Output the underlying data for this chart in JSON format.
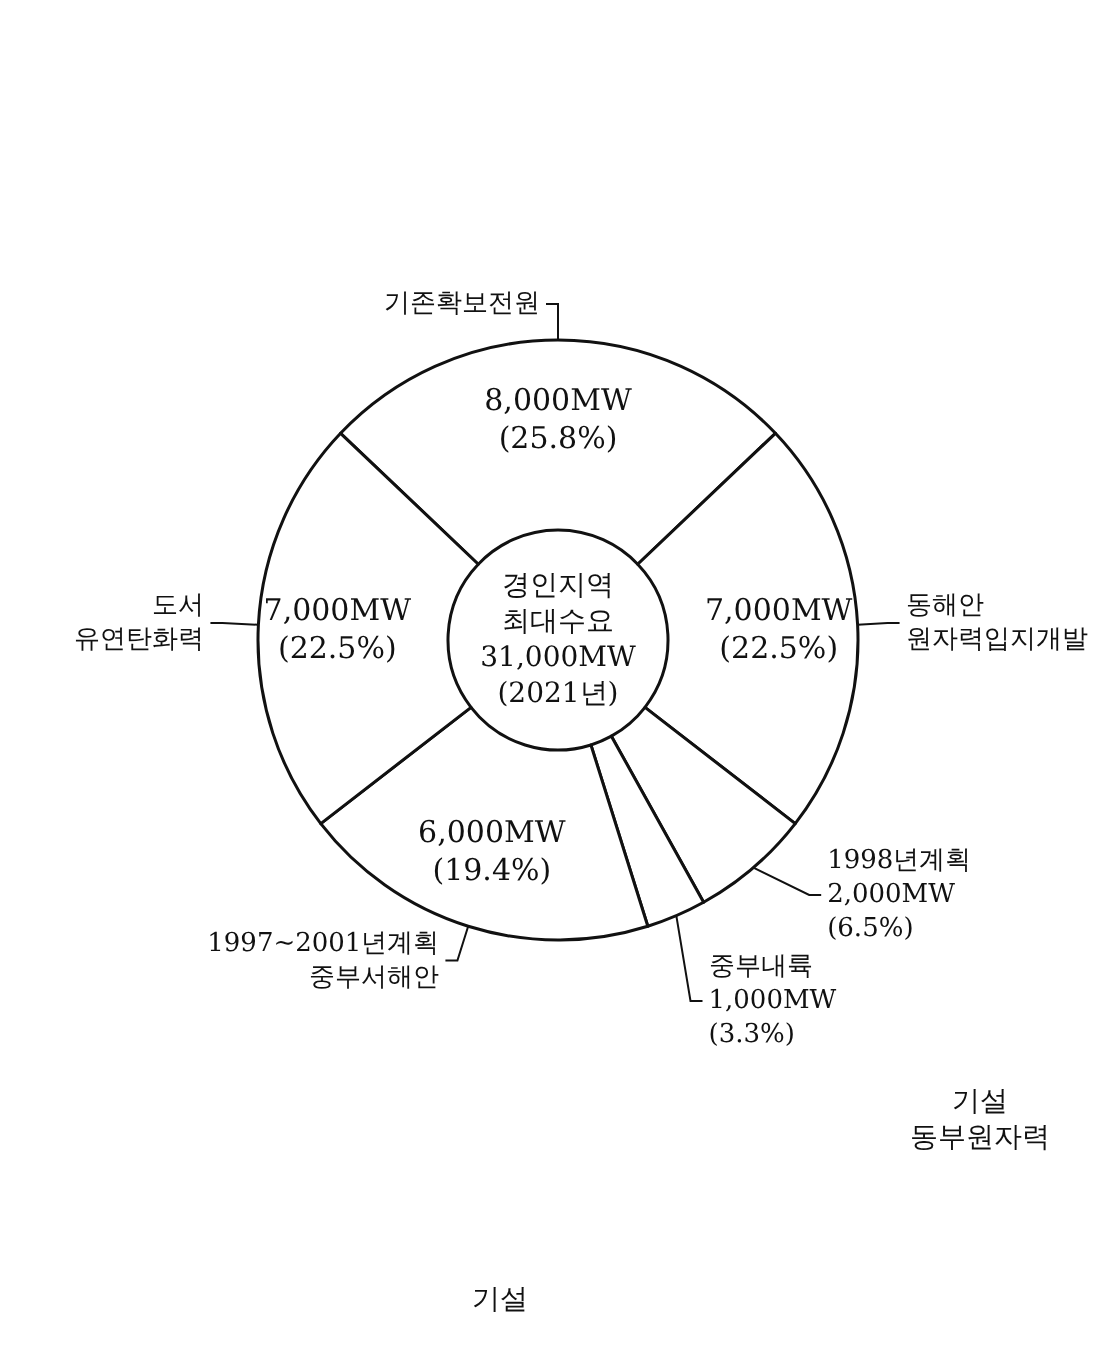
{
  "chart_data": {
    "type": "donut",
    "title": "경인지역\n최대수요\n31,000MW\n(2021년)",
    "categories": [
      "기존확보전원",
      "동해안\n원자력입지개발",
      "1998년계획",
      "중부내륙",
      "1997~2001년계획\n중부서해안",
      "도서\n유연탄화력"
    ],
    "values": [
      8000,
      7000,
      2000,
      1000,
      6000,
      7000
    ],
    "colors": [
      "#ffffff",
      "#ffffff",
      "#ffffff",
      "#ffffff",
      "#ffffff",
      "#ffffff"
    ],
    "value_labels": [
      "8,000MW\n(25.8%)",
      "7,000MW\n(22.5%)",
      "2,000MW\n(6.5%)",
      "1,000MW\n(3.3%)",
      "6,000MW\n(19.4%)",
      "7,000MW\n(22.5%)"
    ],
    "annotations": [
      "기설\n동부원자력",
      "기설"
    ]
  }
}
